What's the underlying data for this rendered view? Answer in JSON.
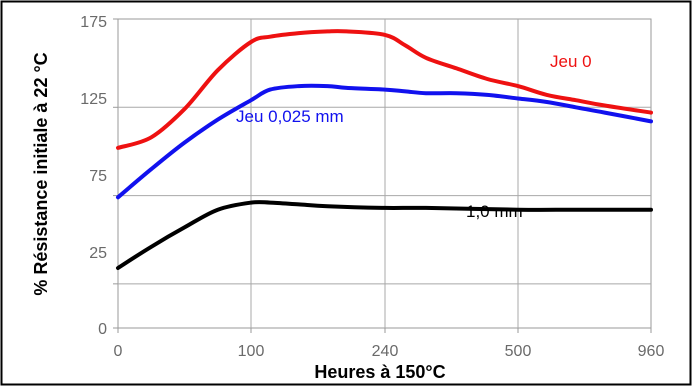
{
  "chart_data": {
    "type": "line",
    "title": "",
    "xlabel": "Heures à 150°C",
    "ylabel": "% Résistance initiale à 22 °C",
    "x_ticks": [
      "0",
      "100",
      "240",
      "500",
      "960"
    ],
    "y_ticks": [
      "0",
      "25",
      "75",
      "125",
      "175"
    ],
    "y_tick_values": [
      0,
      25,
      75,
      125,
      175
    ],
    "ylim": [
      0,
      175
    ],
    "grid": true,
    "legend": "none",
    "series": [
      {
        "name": "Jeu 0",
        "color": "#ee1111",
        "x": [
          0,
          25,
          50,
          75,
          100,
          120,
          150,
          180,
          200,
          240,
          280,
          320,
          380,
          440,
          500,
          600,
          700,
          800,
          960
        ],
        "values": [
          102,
          108,
          124,
          146,
          162,
          165,
          167,
          168,
          168,
          166,
          160,
          153,
          147,
          141,
          137,
          132,
          129,
          126,
          122
        ]
      },
      {
        "name": "Jeu 0,025 mm",
        "color": "#1111ee",
        "x": [
          0,
          25,
          50,
          75,
          100,
          120,
          150,
          180,
          200,
          240,
          280,
          320,
          380,
          440,
          500,
          600,
          700,
          800,
          960
        ],
        "values": [
          74,
          90,
          105,
          118,
          129,
          135,
          137,
          137,
          136,
          135,
          134,
          133,
          133,
          132,
          130,
          128,
          125,
          122,
          117
        ]
      },
      {
        "name": "1,0 mm",
        "color": "#000000",
        "x": [
          0,
          25,
          50,
          75,
          100,
          120,
          150,
          180,
          240,
          320,
          500,
          700,
          960
        ],
        "values": [
          34,
          46,
          57,
          67,
          71,
          71,
          70,
          69,
          68,
          68,
          67,
          67,
          67
        ]
      }
    ]
  }
}
